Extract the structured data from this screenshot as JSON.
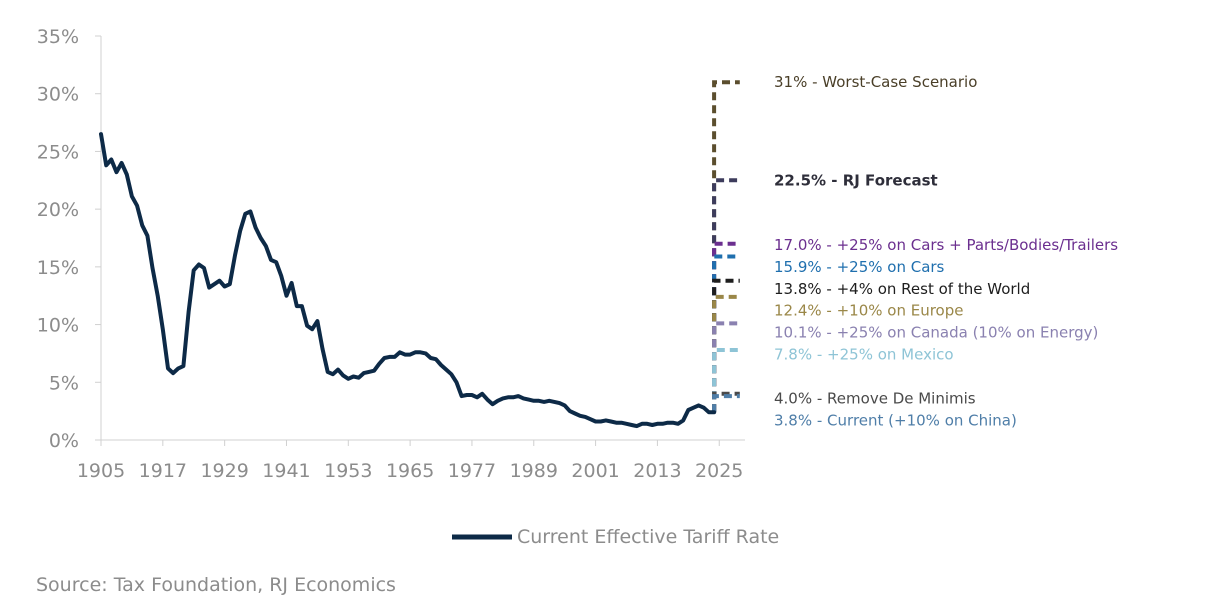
{
  "chart_data": {
    "type": "line",
    "title": "",
    "xlabel": "",
    "ylabel": "",
    "xlim": [
      1905,
      2030
    ],
    "ylim": [
      0,
      35
    ],
    "grid": false,
    "legend_position": "bottom-center",
    "x_ticks": [
      "1905",
      "1917",
      "1929",
      "1941",
      "1953",
      "1965",
      "1977",
      "1989",
      "2001",
      "2013",
      "2025"
    ],
    "y_ticks": [
      "0%",
      "5%",
      "10%",
      "15%",
      "20%",
      "25%",
      "30%",
      "35%"
    ],
    "series": [
      {
        "name": "Current Effective Tariff Rate",
        "color": "#0d2a47",
        "x": [
          1905,
          1906,
          1907,
          1908,
          1909,
          1910,
          1911,
          1912,
          1913,
          1914,
          1915,
          1916,
          1917,
          1918,
          1919,
          1920,
          1921,
          1922,
          1923,
          1924,
          1925,
          1926,
          1927,
          1928,
          1929,
          1930,
          1931,
          1932,
          1933,
          1934,
          1935,
          1936,
          1937,
          1938,
          1939,
          1940,
          1941,
          1942,
          1943,
          1944,
          1945,
          1946,
          1947,
          1948,
          1949,
          1950,
          1951,
          1952,
          1953,
          1954,
          1955,
          1956,
          1957,
          1958,
          1959,
          1960,
          1961,
          1962,
          1963,
          1964,
          1965,
          1966,
          1967,
          1968,
          1969,
          1970,
          1971,
          1972,
          1973,
          1974,
          1975,
          1976,
          1977,
          1978,
          1979,
          1980,
          1981,
          1982,
          1983,
          1984,
          1985,
          1986,
          1987,
          1988,
          1989,
          1990,
          1991,
          1992,
          1993,
          1994,
          1995,
          1996,
          1997,
          1998,
          1999,
          2000,
          2001,
          2002,
          2003,
          2004,
          2005,
          2006,
          2007,
          2008,
          2009,
          2010,
          2011,
          2012,
          2013,
          2014,
          2015,
          2016,
          2017,
          2018,
          2019,
          2020,
          2021,
          2022,
          2023,
          2024
        ],
        "values": [
          26.5,
          23.8,
          24.3,
          23.2,
          24.0,
          23.0,
          21.1,
          20.3,
          18.6,
          17.7,
          14.9,
          12.5,
          9.6,
          6.2,
          5.8,
          6.2,
          6.4,
          11.1,
          14.7,
          15.2,
          14.9,
          13.2,
          13.5,
          13.8,
          13.3,
          13.5,
          16.0,
          18.1,
          19.6,
          19.8,
          18.4,
          17.5,
          16.8,
          15.6,
          15.4,
          14.2,
          12.5,
          13.6,
          11.6,
          11.6,
          9.9,
          9.6,
          10.3,
          7.9,
          5.9,
          5.7,
          6.1,
          5.6,
          5.3,
          5.5,
          5.4,
          5.8,
          5.9,
          6.0,
          6.6,
          7.1,
          7.2,
          7.2,
          7.6,
          7.4,
          7.4,
          7.6,
          7.6,
          7.5,
          7.1,
          7.0,
          6.5,
          6.1,
          5.7,
          5.0,
          3.8,
          3.9,
          3.9,
          3.7,
          4.0,
          3.5,
          3.1,
          3.4,
          3.6,
          3.7,
          3.7,
          3.8,
          3.6,
          3.5,
          3.4,
          3.4,
          3.3,
          3.4,
          3.3,
          3.2,
          3.0,
          2.5,
          2.3,
          2.1,
          2.0,
          1.8,
          1.6,
          1.6,
          1.7,
          1.6,
          1.5,
          1.5,
          1.4,
          1.3,
          1.2,
          1.4,
          1.4,
          1.3,
          1.4,
          1.4,
          1.5,
          1.5,
          1.4,
          1.7,
          2.6,
          2.8,
          3.0,
          2.8,
          2.4,
          2.4
        ]
      }
    ],
    "scenarios": [
      {
        "value": 31.0,
        "label": "31% - Worst-Case Scenario",
        "color": "#5b4e2e",
        "text_color": "#4a3f28",
        "bold": false,
        "label_y": 31.0
      },
      {
        "value": 22.5,
        "label": "22.5% - RJ Forecast",
        "color": "#3d3c5c",
        "text_color": "#2e2e3a",
        "bold": true,
        "label_y": 22.5
      },
      {
        "value": 17.0,
        "label": "17.0% - +25% on Cars + Parts/Bodies/Trailers",
        "color": "#6b2f8f",
        "text_color": "#6b2f8f",
        "bold": false,
        "label_y": 16.9
      },
      {
        "value": 15.9,
        "label": "15.9% - +25% on Cars",
        "color": "#1f6fae",
        "text_color": "#1f6fae",
        "bold": false,
        "label_y": 15.0
      },
      {
        "value": 13.8,
        "label": "13.8% - +4% on Rest of the World",
        "color": "#1e1e1e",
        "text_color": "#1e1e1e",
        "bold": false,
        "label_y": 13.1
      },
      {
        "value": 12.4,
        "label": "12.4% - +10% on Europe",
        "color": "#9a8748",
        "text_color": "#9a8748",
        "bold": false,
        "label_y": 11.2
      },
      {
        "value": 10.1,
        "label": "10.1% - +25% on Canada (10% on Energy)",
        "color": "#8a81b0",
        "text_color": "#8a81b0",
        "bold": false,
        "label_y": 9.3
      },
      {
        "value": 7.8,
        "label": "7.8% - +25% on Mexico",
        "color": "#8ec4d6",
        "text_color": "#8ec4d6",
        "bold": false,
        "label_y": 7.4
      },
      {
        "value": 4.0,
        "label": "4.0% - Remove De Minimis",
        "color": "#4a4a4a",
        "text_color": "#4a4a4a",
        "bold": false,
        "label_y": 3.6
      },
      {
        "value": 3.8,
        "label": "3.8% - Current (+10% on China)",
        "color": "#4f7ea8",
        "text_color": "#4f7ea8",
        "bold": false,
        "label_y": 1.7
      }
    ]
  },
  "source": "Source: Tax Foundation, RJ Economics"
}
